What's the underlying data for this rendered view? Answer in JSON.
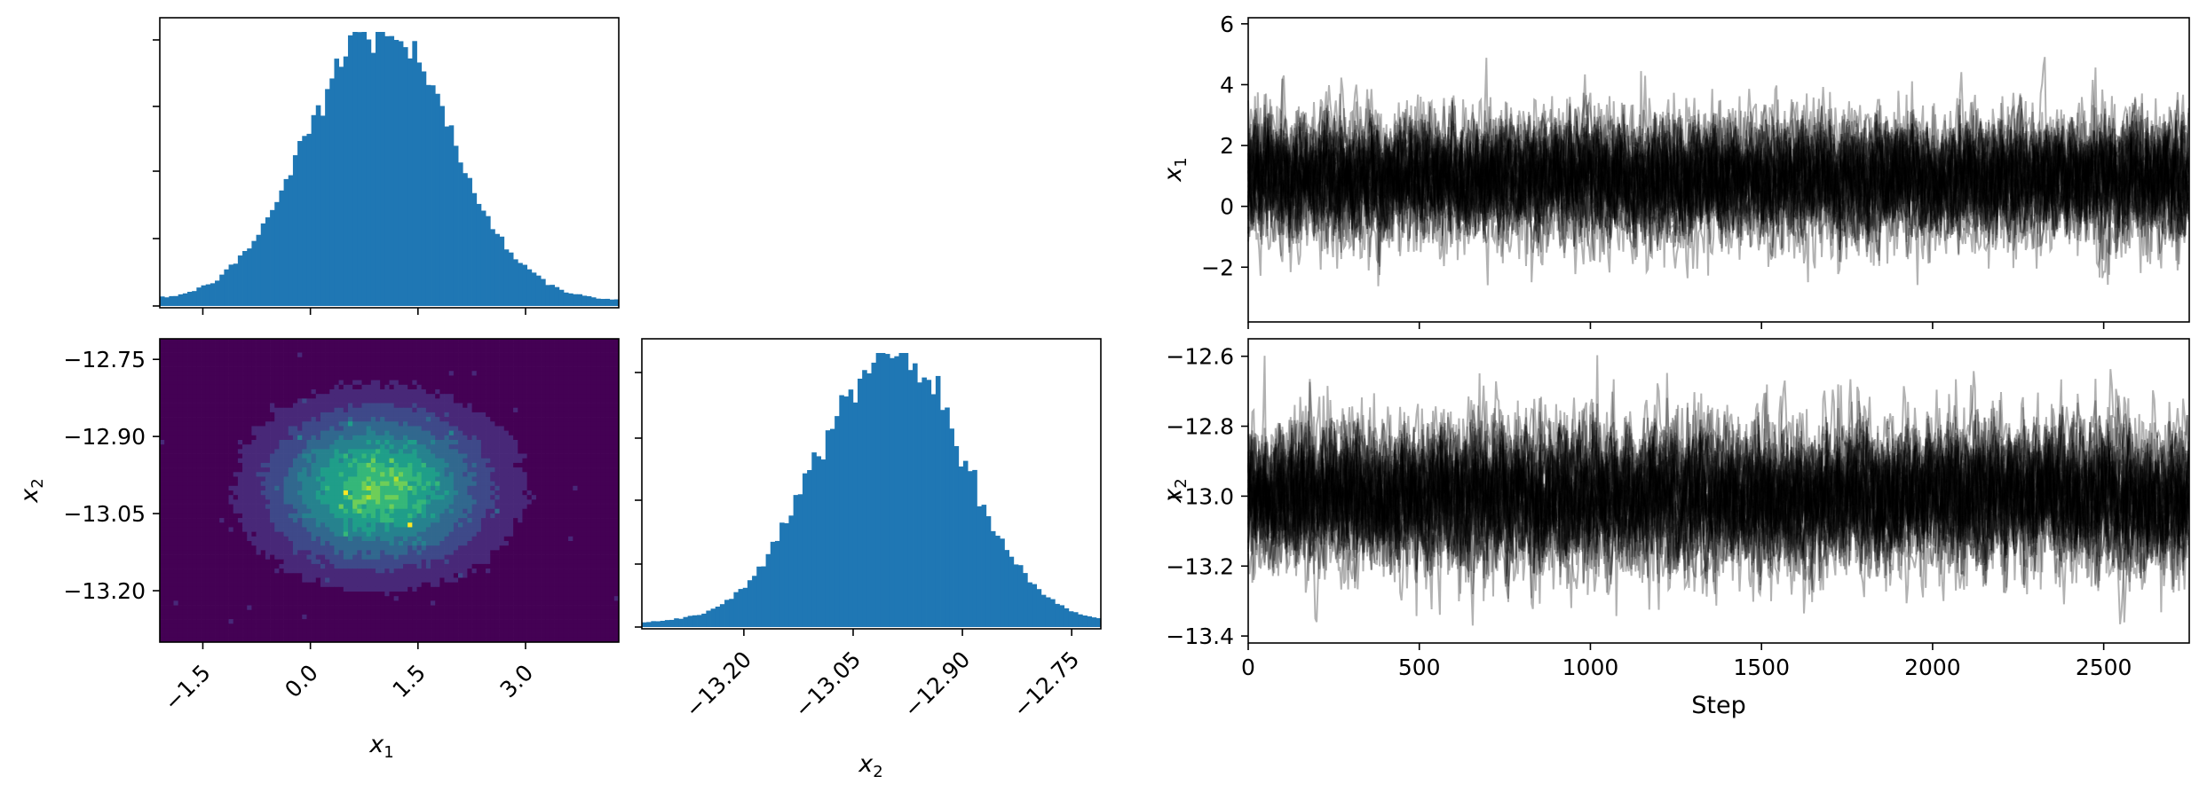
{
  "colors": {
    "hist": "#1f77b4",
    "trace": "#000000",
    "frame": "#000000",
    "viridis": [
      "#440154",
      "#482878",
      "#3e4989",
      "#31688e",
      "#26828e",
      "#1f9e89",
      "#35b779",
      "#6ece58",
      "#b5de2b",
      "#fde725"
    ]
  },
  "chart_data": [
    {
      "name": "hist-x1",
      "type": "bar",
      "title": "",
      "xlabel": "",
      "ylabel": "",
      "xlim": [
        -2.1,
        4.3
      ],
      "distribution": {
        "mean": 0.95,
        "sd": 1.0
      },
      "bins": 100,
      "y_tick_labels_visible": false
    },
    {
      "name": "hist2d-x1-x2",
      "type": "heatmap",
      "title": "",
      "xlabel": "x1",
      "ylabel": "x2",
      "xlim": [
        -2.1,
        4.3
      ],
      "ylim": [
        -13.3,
        -12.71
      ],
      "x_mean": 0.95,
      "x_sd": 1.0,
      "y_mean": -13.0,
      "y_sd": 0.1,
      "bins_x": 100,
      "bins_y": 66,
      "xticks": [
        -1.5,
        0.0,
        1.5,
        3.0
      ],
      "xtick_labels": [
        "−1.5",
        "0.0",
        "1.5",
        "3.0"
      ],
      "yticks": [
        -12.75,
        -12.9,
        -13.05,
        -13.2
      ],
      "ytick_labels": [
        "−12.75",
        "−12.90",
        "−13.05",
        "−13.20"
      ],
      "colormap": "viridis"
    },
    {
      "name": "hist-x2",
      "type": "bar",
      "title": "",
      "xlabel": "x2",
      "ylabel": "",
      "xlim": [
        -13.34,
        -12.71
      ],
      "distribution": {
        "mean": -13.0,
        "sd": 0.1
      },
      "bins": 100,
      "xticks": [
        -13.2,
        -13.05,
        -12.9,
        -12.75
      ],
      "xtick_labels": [
        "−13.20",
        "−13.05",
        "−12.90",
        "−12.75"
      ],
      "y_tick_labels_visible": false
    },
    {
      "name": "trace-x1",
      "type": "line",
      "title": "",
      "xlabel": "",
      "ylabel": "x1",
      "xlim": [
        0,
        2750
      ],
      "ylim": [
        -3.8,
        6.2
      ],
      "yticks": [
        6,
        4,
        2,
        0,
        -2
      ],
      "ytick_labels": [
        "6",
        "4",
        "2",
        "0",
        "−2"
      ],
      "xticks": [
        0,
        500,
        1000,
        1500,
        2000,
        2500
      ],
      "walkers": 32,
      "steps": 2750,
      "mean": 0.95,
      "sd": 1.0,
      "min": -3.5,
      "max": 5.6,
      "x_tick_labels_visible": false
    },
    {
      "name": "trace-x2",
      "type": "line",
      "title": "",
      "xlabel": "Step",
      "ylabel": "x2",
      "xlim": [
        0,
        2750
      ],
      "ylim": [
        -13.42,
        -12.55
      ],
      "yticks": [
        -12.6,
        -12.8,
        -13.0,
        -13.2,
        -13.4
      ],
      "ytick_labels": [
        "−12.6",
        "−12.8",
        "−13.0",
        "−13.2",
        "−13.4"
      ],
      "xticks": [
        0,
        500,
        1000,
        1500,
        2000,
        2500
      ],
      "xtick_labels": [
        "0",
        "500",
        "1000",
        "1500",
        "2000",
        "2500"
      ],
      "walkers": 32,
      "steps": 2750,
      "mean": -13.0,
      "sd": 0.1,
      "min": -13.37,
      "max": -12.59
    }
  ],
  "labels": {
    "x1_sym": "x",
    "x1_sub": "1",
    "x2_sym": "x",
    "x2_sub": "2",
    "step": "Step"
  }
}
